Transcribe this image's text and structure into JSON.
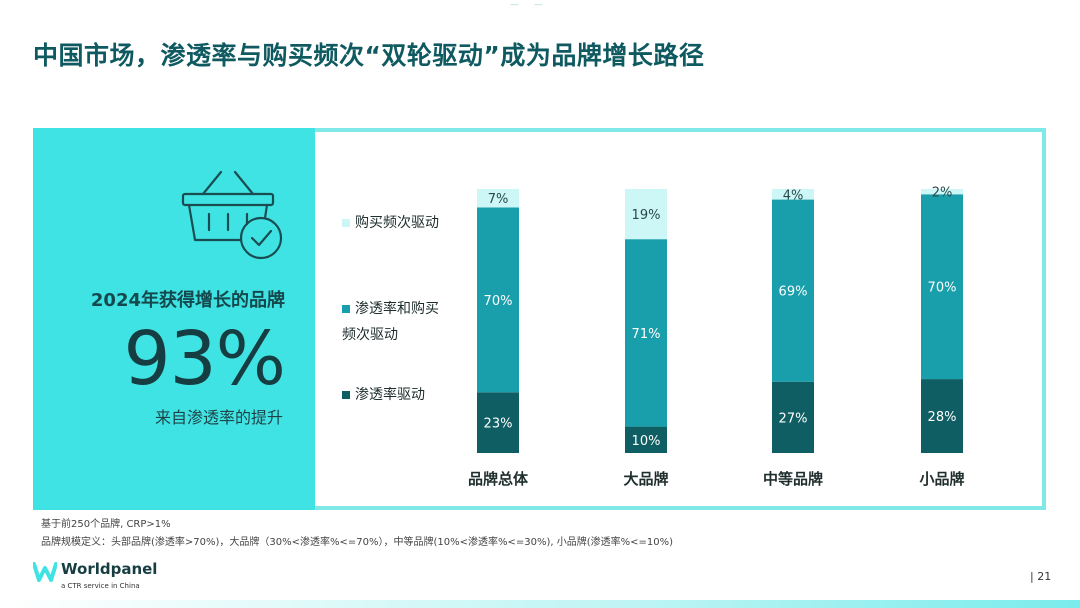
{
  "title": "中国市场，渗透率与购买频次“双轮驱动”成为品牌增长路径",
  "highlight": {
    "label": "2024年获得增长的品牌",
    "value": "93%",
    "caption": "来自渗透率的提升"
  },
  "footnotes": {
    "line1": "基于前250个品牌, CRP>1%",
    "line2": "品牌规模定义：头部品牌(渗透率>70%)，大品牌（30%<渗透率%<=70%），中等品牌(10%<渗透率%<=30%), 小品牌(渗透率%<=10%)"
  },
  "brand": {
    "name": "Worldpanel",
    "tagline": "a CTR service in China"
  },
  "page": {
    "number": "| 21"
  },
  "colors": {
    "accent": "#40e3e3",
    "frequency": "#cdf6f6",
    "both": "#189fab",
    "penetration": "#0f5e63"
  },
  "chart_data": {
    "type": "bar",
    "stacked": true,
    "categories": [
      "品牌总体",
      "大品牌",
      "中等品牌",
      "小品牌"
    ],
    "series": [
      {
        "name": "渗透率驱动",
        "values": [
          23,
          10,
          27,
          28
        ],
        "color": "#0f5e63"
      },
      {
        "name": "渗透率和购买频次驱动",
        "values": [
          70,
          71,
          69,
          70
        ],
        "color": "#189fab"
      },
      {
        "name": "购买频次驱动",
        "values": [
          7,
          19,
          4,
          2
        ],
        "color": "#cdf6f6"
      }
    ],
    "data_labels": [
      [
        "23%",
        "10%",
        "27%",
        "28%"
      ],
      [
        "70%",
        "71%",
        "69%",
        "70%"
      ],
      [
        "7%",
        "19%",
        "4%",
        "2%"
      ]
    ],
    "legend": {
      "items": [
        {
          "label": "购买频次驱动",
          "color": "#cdf6f6"
        },
        {
          "label_line1": "渗透率和购买",
          "label_line2": "频次驱动",
          "color": "#189fab"
        },
        {
          "label": "渗透率驱动",
          "color": "#0f5e63"
        }
      ],
      "position": "left"
    },
    "ylim": [
      0,
      100
    ],
    "grid": false,
    "title": "",
    "xlabel": "",
    "ylabel": ""
  }
}
